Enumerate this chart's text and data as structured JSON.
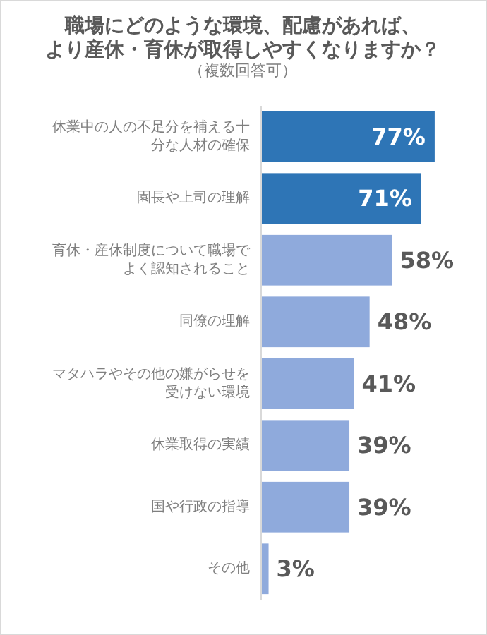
{
  "chart_data": {
    "type": "bar",
    "orientation": "horizontal",
    "title": "職場にどのような環境、配慮があれば、より産休・育休が取得しやすくなりますか？",
    "subtitle": "（複数回答可）",
    "categories": [
      "休業中の人の不足分を補える十分な人材の確保",
      "園長や上司の理解",
      "育休・産休制度について職場でよく認知されること",
      "同僚の理解",
      "マタハラやその他の嫌がらせを受けない環境",
      "休業取得の実績",
      "国や行政の指導",
      "その他"
    ],
    "values": [
      77,
      71,
      58,
      48,
      41,
      39,
      39,
      3
    ],
    "value_labels": [
      "77%",
      "71%",
      "58%",
      "48%",
      "41%",
      "39%",
      "39%",
      "3%"
    ],
    "colors": [
      "#2e75b6",
      "#2e75b6",
      "#8faadc",
      "#8faadc",
      "#8faadc",
      "#8faadc",
      "#8faadc",
      "#8faadc"
    ]
  }
}
